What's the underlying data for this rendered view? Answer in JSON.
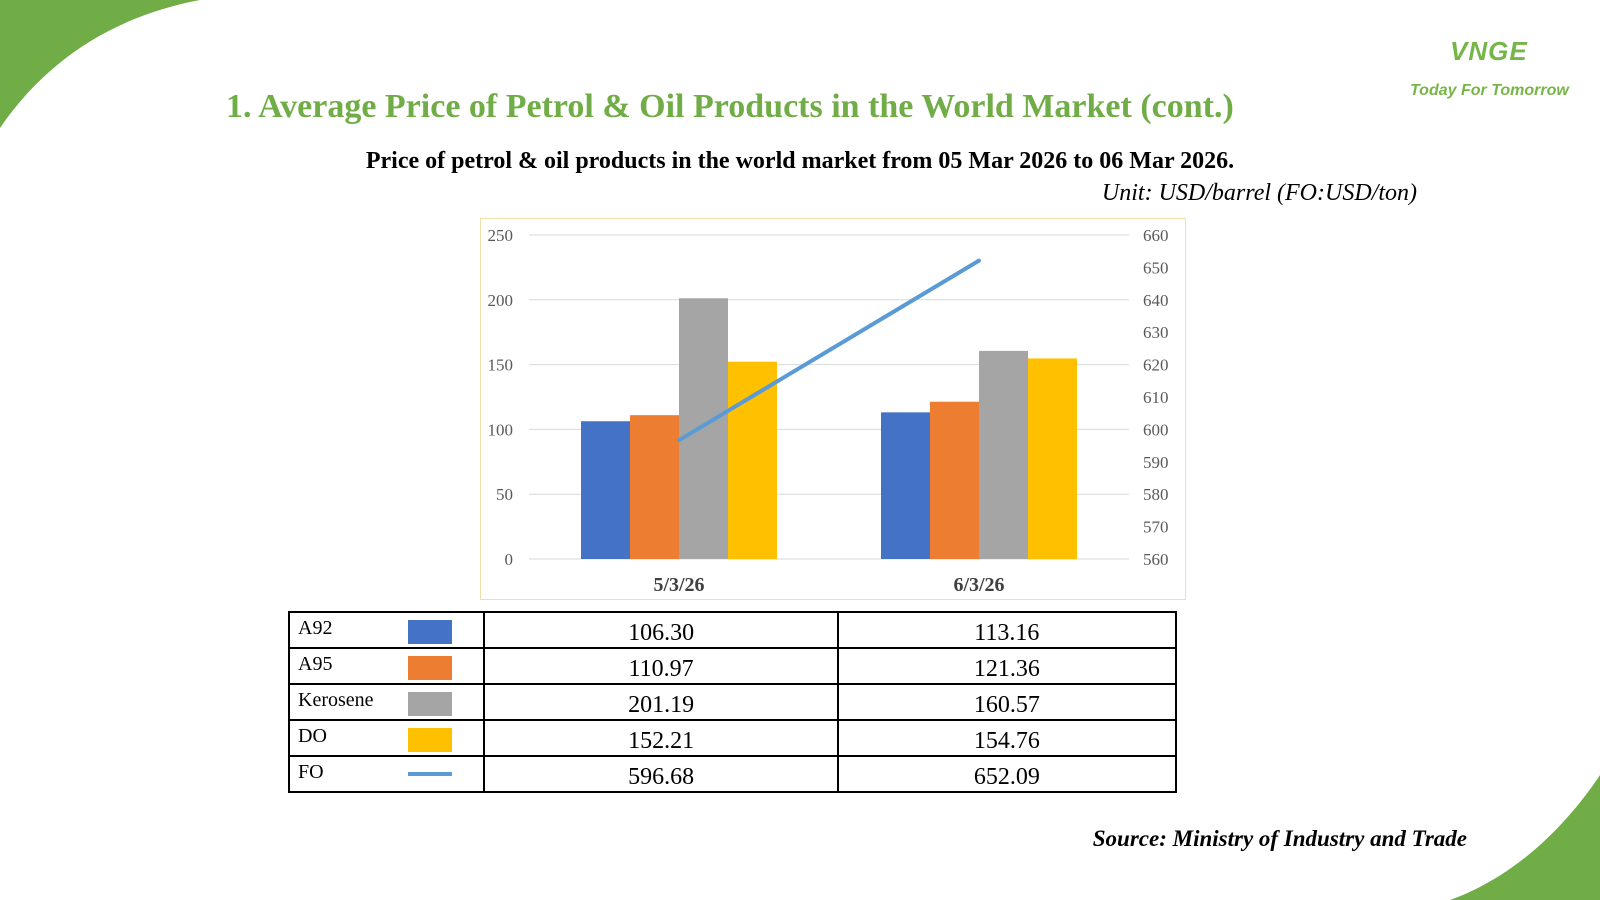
{
  "slide": {
    "title": "1. Average Price of Petrol & Oil Products in the World Market (cont.)",
    "subtitle": "Price of petrol & oil products in the world market from 05 Mar 2026 to 06 Mar 2026.",
    "unit": "Unit: USD/barrel (FO:USD/ton)",
    "source": "Source: Ministry of Industry and Trade",
    "logo_mark": "VNGE",
    "logo_tagline": "Today For Tomorrow",
    "accent_color": "#70ad47"
  },
  "chart_data": {
    "type": "bar",
    "title": "",
    "categories": [
      "5/3/26",
      "6/3/26"
    ],
    "primary_axis": {
      "ylim": [
        0,
        250
      ],
      "ticks": [
        "250",
        "200",
        "150",
        "100",
        "50",
        "0"
      ]
    },
    "secondary_axis": {
      "ylim": [
        560,
        660
      ],
      "ticks": [
        "660",
        "650",
        "640",
        "630",
        "620",
        "610",
        "600",
        "590",
        "580",
        "570",
        "560"
      ]
    },
    "grid": true,
    "legend": "data table below chart",
    "series": [
      {
        "name": "A92",
        "type": "bar",
        "axis": "primary",
        "color": "#4472c4",
        "values": [
          106.3,
          113.16
        ],
        "labels": [
          "106.30",
          "113.16"
        ]
      },
      {
        "name": "A95",
        "type": "bar",
        "axis": "primary",
        "color": "#ed7d31",
        "values": [
          110.97,
          121.36
        ],
        "labels": [
          "110.97",
          "121.36"
        ]
      },
      {
        "name": "Kerosene",
        "type": "bar",
        "axis": "primary",
        "color": "#a5a5a5",
        "values": [
          201.19,
          160.57
        ],
        "labels": [
          "201.19",
          "160.57"
        ]
      },
      {
        "name": "DO",
        "type": "bar",
        "axis": "primary",
        "color": "#ffc000",
        "values": [
          152.21,
          154.76
        ],
        "labels": [
          "152.21",
          "154.76"
        ]
      },
      {
        "name": "FO",
        "type": "line",
        "axis": "secondary",
        "color": "#5b9bd5",
        "values": [
          596.68,
          652.09
        ],
        "labels": [
          "596.68",
          "652.09"
        ]
      }
    ]
  }
}
